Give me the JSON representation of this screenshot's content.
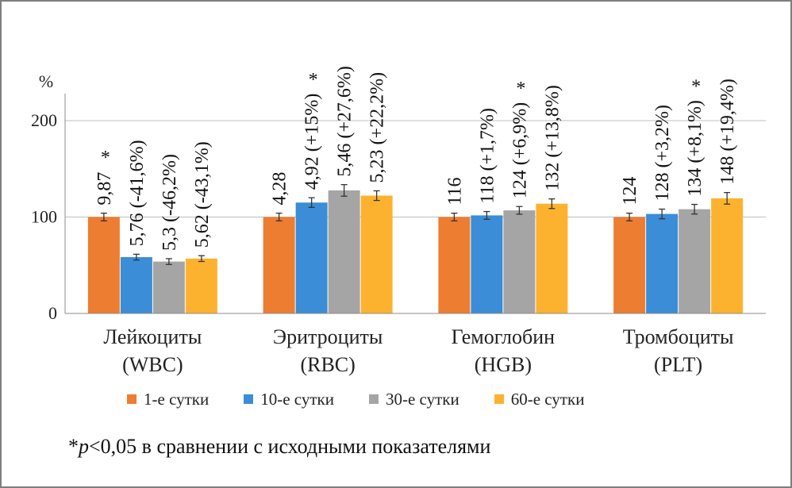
{
  "chart_data": {
    "type": "bar",
    "y_unit_label": "%",
    "ylim": [
      0,
      200
    ],
    "y_ticks": [
      "0",
      "100",
      "200"
    ],
    "grid": true,
    "categories": [
      "Лейкоциты\n(WBC)",
      "Эритроциты\n(RBC)",
      "Гемоглобин\n(HGB)",
      "Тромбоциты\n(PLT)"
    ],
    "categories_line1": [
      "Лейкоциты",
      "Эритроциты",
      "Гемоглобин",
      "Тромбоциты"
    ],
    "categories_line2": [
      "(WBC)",
      "(RBC)",
      "(HGB)",
      "(PLT)"
    ],
    "series": [
      {
        "name": "1-е сутки",
        "color": "#ED7D31",
        "values": [
          100,
          100,
          100,
          100
        ],
        "errors": [
          4,
          4,
          4,
          4
        ],
        "labels": [
          "9,87",
          "4,28",
          "116",
          "124"
        ],
        "significant": [
          true,
          false,
          false,
          false
        ]
      },
      {
        "name": "10-е сутки",
        "color": "#3A8DD6",
        "values": [
          58.4,
          115,
          101.7,
          103.2
        ],
        "errors": [
          3,
          5,
          4,
          5
        ],
        "labels": [
          "5,76 (-41,6%)",
          "4,92 (+15%)",
          "118 (+1,7%)",
          "128 (+3,2%)"
        ],
        "significant": [
          false,
          true,
          false,
          false
        ]
      },
      {
        "name": "30-е сутки",
        "color": "#A5A5A5",
        "values": [
          53.8,
          127.6,
          106.9,
          108.1
        ],
        "errors": [
          3,
          6,
          4,
          5
        ],
        "labels": [
          "5,3 (-46,2%)",
          "5,46 (+27,6%)",
          "124 (+6,9%)",
          "134 (+8,1%)"
        ],
        "significant": [
          false,
          false,
          true,
          true
        ]
      },
      {
        "name": "60-е сутки",
        "color": "#FDB22F",
        "values": [
          56.9,
          122.2,
          113.8,
          119.4
        ],
        "errors": [
          3,
          5,
          5,
          6
        ],
        "labels": [
          "5,62 (-43,1%)",
          "5,23 (+22,2%)",
          "132 (+13,8%)",
          "148 (+19,4%)"
        ],
        "significant": [
          false,
          false,
          false,
          false
        ]
      }
    ],
    "significance_mark": "*",
    "legend_position": "bottom"
  },
  "footnote": {
    "star": "*",
    "p": "p",
    "rest": "<0,05 в сравнении с исходными показателями"
  }
}
